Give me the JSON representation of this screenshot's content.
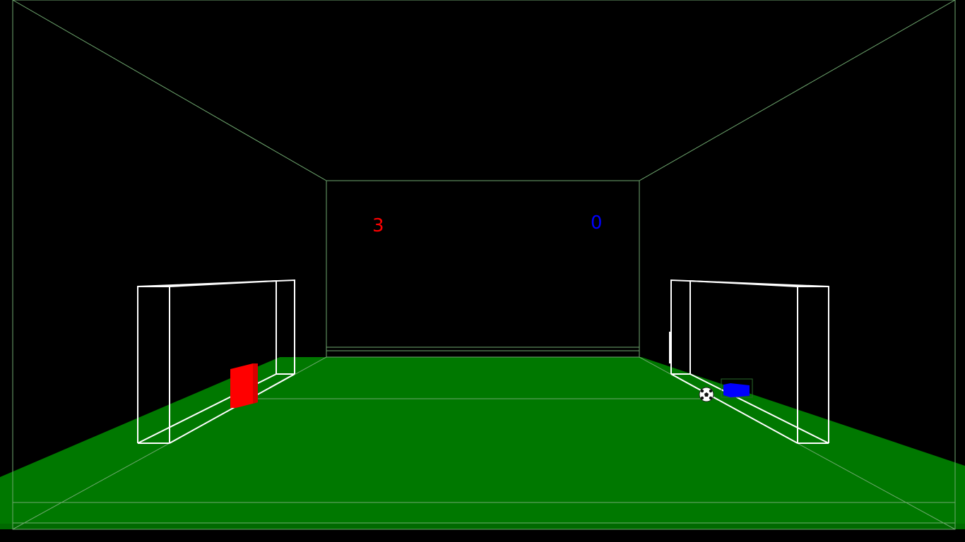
{
  "scoreboard": {
    "red_score": "3",
    "blue_score": "0"
  },
  "colors": {
    "background": "#000000",
    "field": "#007800",
    "room_lines": "#6fa86f",
    "goal_frame": "#ffffff",
    "red_player": "#ff0000",
    "blue_player": "#0000ff",
    "ball": "#ffffff"
  },
  "entities": {
    "red_player": "red-paddle",
    "blue_player": "blue-paddle",
    "ball": "soccer-ball"
  }
}
